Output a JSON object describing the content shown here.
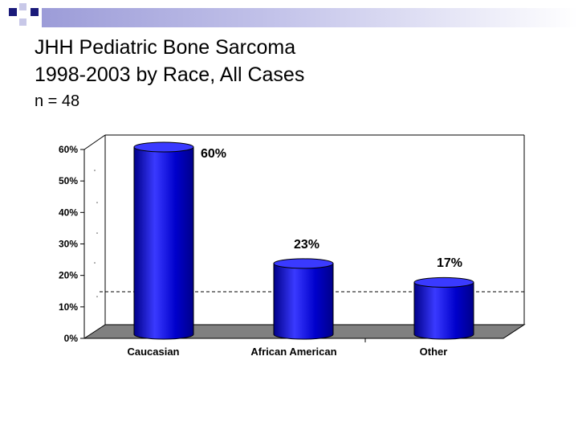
{
  "slide": {
    "title_line1": "JHH Pediatric Bone Sarcoma",
    "title_line2": "1998-2003 by Race, All Cases",
    "subtitle": "n = 48"
  },
  "colors": {
    "bar": "#0000cc",
    "bar_dark": "#00008a",
    "bar_light": "#3a3aff",
    "floor": "#808080",
    "band": "#a0a0dc"
  },
  "chart_data": {
    "type": "bar",
    "categories": [
      "Caucasian",
      "African American",
      "Other"
    ],
    "values": [
      60,
      23,
      17
    ],
    "data_labels": [
      "60%",
      "23%",
      "17%"
    ],
    "ytick_labels": [
      "0%",
      "10%",
      "20%",
      "30%",
      "40%",
      "50%",
      "60%"
    ],
    "ylim": [
      0,
      60
    ],
    "grid": false,
    "legend": "none",
    "style": "3d-cylinder"
  }
}
